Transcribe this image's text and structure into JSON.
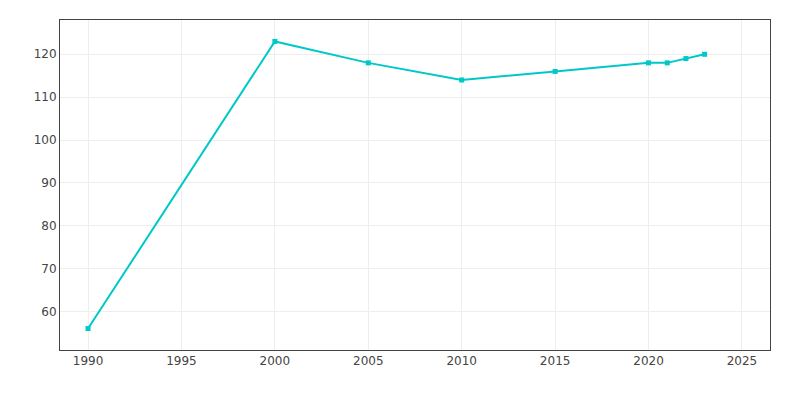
{
  "chart_data": {
    "type": "line",
    "x": [
      1990,
      2000,
      2005,
      2010,
      2015,
      2020,
      2021,
      2022,
      2023
    ],
    "values": [
      56,
      123,
      118,
      114,
      116,
      118,
      118,
      119,
      120
    ],
    "color": "#00C8C8",
    "marker": "square",
    "xlim": [
      1988.5,
      2026.5
    ],
    "ylim": [
      51,
      128
    ],
    "xticks": [
      1990,
      1995,
      2000,
      2005,
      2010,
      2015,
      2020,
      2025
    ],
    "yticks": [
      60,
      70,
      80,
      90,
      100,
      110,
      120
    ],
    "grid": true
  }
}
